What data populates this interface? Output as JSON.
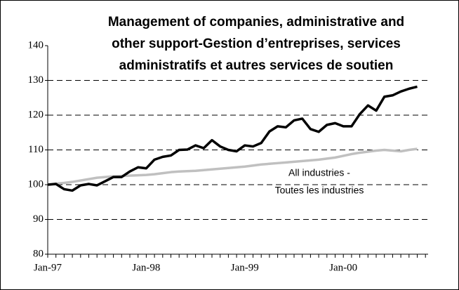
{
  "chart_data": {
    "type": "line",
    "title": [
      "Management of companies, administrative and",
      "other support-Gestion d’entreprises, services",
      "administratifs et autres services de soutien"
    ],
    "annotation": [
      "All industries -",
      "Toutes les industries"
    ],
    "categories": [
      "Jan-97",
      null,
      null,
      null,
      null,
      null,
      null,
      null,
      null,
      null,
      null,
      null,
      "Jan-98",
      null,
      null,
      null,
      null,
      null,
      null,
      null,
      null,
      null,
      null,
      null,
      "Jan-99",
      null,
      null,
      null,
      null,
      null,
      null,
      null,
      null,
      null,
      null,
      null,
      "Jan-00",
      null,
      null,
      null,
      null,
      null,
      null,
      null,
      null,
      null
    ],
    "series": [
      {
        "color": "#000000",
        "values": [
          100,
          100.2,
          98.7,
          98.3,
          99.8,
          100.2,
          99.8,
          101,
          102.2,
          102.2,
          103.8,
          105,
          104.7,
          107.2,
          108,
          108.4,
          110,
          110.1,
          111.3,
          110.5,
          112.8,
          111,
          110,
          109.6,
          111.3,
          111,
          112,
          115.3,
          116.8,
          116.5,
          118.5,
          119,
          116,
          115.2,
          117.2,
          117.7,
          116.8,
          116.8,
          120.3,
          122.8,
          121.3,
          125.3,
          125.7,
          126.8,
          127.6,
          128.2
        ]
      },
      {
        "color": "#c0c0c0",
        "values": [
          100,
          100.3,
          100.5,
          100.8,
          101.2,
          101.6,
          102,
          102.2,
          102.4,
          102.5,
          102.6,
          102.7,
          102.8,
          103,
          103.3,
          103.6,
          103.8,
          103.9,
          104,
          104.2,
          104.4,
          104.6,
          104.8,
          105,
          105.2,
          105.5,
          105.8,
          106,
          106.2,
          106.4,
          106.6,
          106.8,
          107,
          107.2,
          107.5,
          107.8,
          108.3,
          108.8,
          109.2,
          109.5,
          109.8,
          110,
          109.8,
          109.6,
          110,
          110.3
        ]
      }
    ],
    "ylim": [
      80,
      140
    ],
    "yticks": [
      80,
      90,
      100,
      110,
      120,
      130,
      140
    ],
    "grid": true
  }
}
